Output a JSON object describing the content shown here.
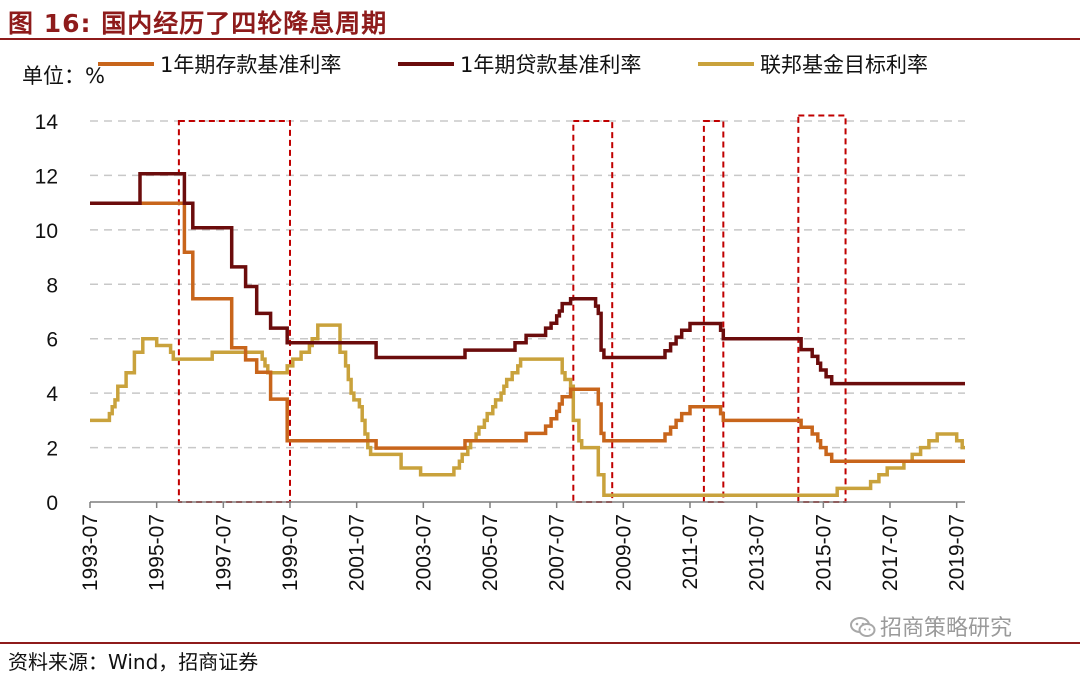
{
  "figure": {
    "title": "图 16:  国内经历了四轮降息周期",
    "source": "资料来源：Wind，招商证券",
    "watermark": "招商策略研究",
    "watermark_icon": "wechat-icon"
  },
  "chart_data": {
    "type": "line",
    "unit_label": "单位：%",
    "ylim": [
      0,
      14
    ],
    "yticks": [
      0,
      2,
      4,
      6,
      8,
      10,
      12,
      14
    ],
    "xlim": [
      "1993-07",
      "2019-10"
    ],
    "xticks": [
      "1993-07",
      "1995-07",
      "1997-07",
      "1999-07",
      "2001-07",
      "2003-07",
      "2005-07",
      "2007-07",
      "2009-07",
      "2011-07",
      "2013-07",
      "2015-07",
      "2017-07",
      "2019-07"
    ],
    "grid": "horizontal-dashed",
    "legend": "top",
    "colors": {
      "deposit": "#c8651b",
      "loan": "#6b0c0c",
      "fed": "#c9a23c",
      "box": "#c00000",
      "grid": "#c8c8c8"
    },
    "series": [
      {
        "key": "deposit",
        "name": "1年期存款基准利率",
        "points": [
          [
            "1993-07",
            10.98
          ],
          [
            "1996-05",
            10.98
          ],
          [
            "1996-05",
            9.18
          ],
          [
            "1996-08",
            9.18
          ],
          [
            "1996-08",
            7.47
          ],
          [
            "1997-10",
            7.47
          ],
          [
            "1997-10",
            5.67
          ],
          [
            "1998-03",
            5.67
          ],
          [
            "1998-03",
            5.22
          ],
          [
            "1998-07",
            5.22
          ],
          [
            "1998-07",
            4.77
          ],
          [
            "1998-12",
            4.77
          ],
          [
            "1998-12",
            3.78
          ],
          [
            "1999-06",
            3.78
          ],
          [
            "1999-06",
            2.25
          ],
          [
            "2002-02",
            2.25
          ],
          [
            "2002-02",
            1.98
          ],
          [
            "2004-10",
            1.98
          ],
          [
            "2004-10",
            2.25
          ],
          [
            "2006-08",
            2.25
          ],
          [
            "2006-08",
            2.52
          ],
          [
            "2007-03",
            2.52
          ],
          [
            "2007-03",
            2.79
          ],
          [
            "2007-05",
            2.79
          ],
          [
            "2007-05",
            3.06
          ],
          [
            "2007-07",
            3.06
          ],
          [
            "2007-07",
            3.33
          ],
          [
            "2007-08",
            3.33
          ],
          [
            "2007-08",
            3.6
          ],
          [
            "2007-09",
            3.6
          ],
          [
            "2007-09",
            3.87
          ],
          [
            "2007-12",
            3.87
          ],
          [
            "2007-12",
            4.14
          ],
          [
            "2008-10",
            4.14
          ],
          [
            "2008-10",
            3.87
          ],
          [
            "2008-10",
            3.6
          ],
          [
            "2008-11",
            3.6
          ],
          [
            "2008-11",
            2.52
          ],
          [
            "2008-12",
            2.52
          ],
          [
            "2008-12",
            2.25
          ],
          [
            "2010-10",
            2.25
          ],
          [
            "2010-10",
            2.5
          ],
          [
            "2010-12",
            2.5
          ],
          [
            "2010-12",
            2.75
          ],
          [
            "2011-02",
            2.75
          ],
          [
            "2011-02",
            3.0
          ],
          [
            "2011-04",
            3.0
          ],
          [
            "2011-04",
            3.25
          ],
          [
            "2011-07",
            3.25
          ],
          [
            "2011-07",
            3.5
          ],
          [
            "2012-06",
            3.5
          ],
          [
            "2012-06",
            3.25
          ],
          [
            "2012-07",
            3.25
          ],
          [
            "2012-07",
            3.0
          ],
          [
            "2014-11",
            3.0
          ],
          [
            "2014-11",
            2.75
          ],
          [
            "2015-03",
            2.75
          ],
          [
            "2015-03",
            2.5
          ],
          [
            "2015-05",
            2.5
          ],
          [
            "2015-05",
            2.25
          ],
          [
            "2015-06",
            2.25
          ],
          [
            "2015-06",
            2.0
          ],
          [
            "2015-08",
            2.0
          ],
          [
            "2015-08",
            1.75
          ],
          [
            "2015-10",
            1.75
          ],
          [
            "2015-10",
            1.5
          ],
          [
            "2019-10",
            1.5
          ]
        ]
      },
      {
        "key": "loan",
        "name": "1年期贷款基准利率",
        "points": [
          [
            "1993-07",
            10.98
          ],
          [
            "1995-01",
            10.98
          ],
          [
            "1995-01",
            12.06
          ],
          [
            "1996-05",
            12.06
          ],
          [
            "1996-05",
            10.98
          ],
          [
            "1996-08",
            10.98
          ],
          [
            "1996-08",
            10.08
          ],
          [
            "1997-10",
            10.08
          ],
          [
            "1997-10",
            8.64
          ],
          [
            "1998-03",
            8.64
          ],
          [
            "1998-03",
            7.92
          ],
          [
            "1998-07",
            7.92
          ],
          [
            "1998-07",
            6.93
          ],
          [
            "1998-12",
            6.93
          ],
          [
            "1998-12",
            6.39
          ],
          [
            "1999-06",
            6.39
          ],
          [
            "1999-06",
            5.85
          ],
          [
            "2002-02",
            5.85
          ],
          [
            "2002-02",
            5.31
          ],
          [
            "2004-10",
            5.31
          ],
          [
            "2004-10",
            5.58
          ],
          [
            "2006-04",
            5.58
          ],
          [
            "2006-04",
            5.85
          ],
          [
            "2006-08",
            5.85
          ],
          [
            "2006-08",
            6.12
          ],
          [
            "2007-03",
            6.12
          ],
          [
            "2007-03",
            6.39
          ],
          [
            "2007-05",
            6.39
          ],
          [
            "2007-05",
            6.57
          ],
          [
            "2007-07",
            6.57
          ],
          [
            "2007-07",
            6.84
          ],
          [
            "2007-08",
            6.84
          ],
          [
            "2007-08",
            7.02
          ],
          [
            "2007-09",
            7.02
          ],
          [
            "2007-09",
            7.29
          ],
          [
            "2007-12",
            7.29
          ],
          [
            "2007-12",
            7.47
          ],
          [
            "2008-09",
            7.47
          ],
          [
            "2008-09",
            7.2
          ],
          [
            "2008-10",
            7.2
          ],
          [
            "2008-10",
            6.93
          ],
          [
            "2008-11",
            6.93
          ],
          [
            "2008-11",
            6.66
          ],
          [
            "2008-11",
            5.58
          ],
          [
            "2008-12",
            5.58
          ],
          [
            "2008-12",
            5.31
          ],
          [
            "2010-10",
            5.31
          ],
          [
            "2010-10",
            5.56
          ],
          [
            "2010-12",
            5.56
          ],
          [
            "2010-12",
            5.81
          ],
          [
            "2011-02",
            5.81
          ],
          [
            "2011-02",
            6.06
          ],
          [
            "2011-04",
            6.06
          ],
          [
            "2011-04",
            6.31
          ],
          [
            "2011-07",
            6.31
          ],
          [
            "2011-07",
            6.56
          ],
          [
            "2012-06",
            6.56
          ],
          [
            "2012-06",
            6.31
          ],
          [
            "2012-07",
            6.31
          ],
          [
            "2012-07",
            6.0
          ],
          [
            "2014-11",
            6.0
          ],
          [
            "2014-11",
            5.6
          ],
          [
            "2015-03",
            5.6
          ],
          [
            "2015-03",
            5.35
          ],
          [
            "2015-05",
            5.35
          ],
          [
            "2015-05",
            5.1
          ],
          [
            "2015-06",
            5.1
          ],
          [
            "2015-06",
            4.85
          ],
          [
            "2015-08",
            4.85
          ],
          [
            "2015-08",
            4.6
          ],
          [
            "2015-10",
            4.6
          ],
          [
            "2015-10",
            4.35
          ],
          [
            "2019-10",
            4.35
          ]
        ]
      },
      {
        "key": "fed",
        "name": "联邦基金目标利率",
        "points": [
          [
            "1993-07",
            3.0
          ],
          [
            "1994-02",
            3.0
          ],
          [
            "1994-02",
            3.25
          ],
          [
            "1994-03",
            3.25
          ],
          [
            "1994-03",
            3.5
          ],
          [
            "1994-04",
            3.5
          ],
          [
            "1994-04",
            3.75
          ],
          [
            "1994-05",
            3.75
          ],
          [
            "1994-05",
            4.25
          ],
          [
            "1994-08",
            4.25
          ],
          [
            "1994-08",
            4.75
          ],
          [
            "1994-11",
            4.75
          ],
          [
            "1994-11",
            5.5
          ],
          [
            "1995-02",
            5.5
          ],
          [
            "1995-02",
            6.0
          ],
          [
            "1995-07",
            6.0
          ],
          [
            "1995-07",
            5.75
          ],
          [
            "1995-12",
            5.75
          ],
          [
            "1995-12",
            5.5
          ],
          [
            "1996-01",
            5.5
          ],
          [
            "1996-01",
            5.25
          ],
          [
            "1997-03",
            5.25
          ],
          [
            "1997-03",
            5.5
          ],
          [
            "1998-09",
            5.5
          ],
          [
            "1998-09",
            5.25
          ],
          [
            "1998-10",
            5.25
          ],
          [
            "1998-10",
            5.0
          ],
          [
            "1998-11",
            5.0
          ],
          [
            "1998-11",
            4.75
          ],
          [
            "1999-06",
            4.75
          ],
          [
            "1999-06",
            5.0
          ],
          [
            "1999-08",
            5.0
          ],
          [
            "1999-08",
            5.25
          ],
          [
            "1999-11",
            5.25
          ],
          [
            "1999-11",
            5.5
          ],
          [
            "2000-02",
            5.5
          ],
          [
            "2000-02",
            5.75
          ],
          [
            "2000-03",
            5.75
          ],
          [
            "2000-03",
            6.0
          ],
          [
            "2000-05",
            6.0
          ],
          [
            "2000-05",
            6.5
          ],
          [
            "2001-01",
            6.5
          ],
          [
            "2001-01",
            6.0
          ],
          [
            "2001-01",
            5.5
          ],
          [
            "2001-03",
            5.5
          ],
          [
            "2001-03",
            5.0
          ],
          [
            "2001-04",
            5.0
          ],
          [
            "2001-04",
            4.5
          ],
          [
            "2001-05",
            4.5
          ],
          [
            "2001-05",
            4.0
          ],
          [
            "2001-06",
            4.0
          ],
          [
            "2001-06",
            3.75
          ],
          [
            "2001-08",
            3.75
          ],
          [
            "2001-08",
            3.5
          ],
          [
            "2001-09",
            3.5
          ],
          [
            "2001-09",
            3.0
          ],
          [
            "2001-10",
            3.0
          ],
          [
            "2001-10",
            2.5
          ],
          [
            "2001-11",
            2.5
          ],
          [
            "2001-11",
            2.0
          ],
          [
            "2001-12",
            2.0
          ],
          [
            "2001-12",
            1.75
          ],
          [
            "2002-11",
            1.75
          ],
          [
            "2002-11",
            1.25
          ],
          [
            "2003-06",
            1.25
          ],
          [
            "2003-06",
            1.0
          ],
          [
            "2004-06",
            1.0
          ],
          [
            "2004-06",
            1.25
          ],
          [
            "2004-08",
            1.25
          ],
          [
            "2004-08",
            1.5
          ],
          [
            "2004-09",
            1.5
          ],
          [
            "2004-09",
            1.75
          ],
          [
            "2004-11",
            1.75
          ],
          [
            "2004-11",
            2.0
          ],
          [
            "2004-12",
            2.0
          ],
          [
            "2004-12",
            2.25
          ],
          [
            "2005-02",
            2.25
          ],
          [
            "2005-02",
            2.5
          ],
          [
            "2005-03",
            2.5
          ],
          [
            "2005-03",
            2.75
          ],
          [
            "2005-05",
            2.75
          ],
          [
            "2005-05",
            3.0
          ],
          [
            "2005-06",
            3.0
          ],
          [
            "2005-06",
            3.25
          ],
          [
            "2005-08",
            3.25
          ],
          [
            "2005-08",
            3.5
          ],
          [
            "2005-09",
            3.5
          ],
          [
            "2005-09",
            3.75
          ],
          [
            "2005-11",
            3.75
          ],
          [
            "2005-11",
            4.0
          ],
          [
            "2005-12",
            4.0
          ],
          [
            "2005-12",
            4.25
          ],
          [
            "2006-01",
            4.25
          ],
          [
            "2006-01",
            4.5
          ],
          [
            "2006-03",
            4.5
          ],
          [
            "2006-03",
            4.75
          ],
          [
            "2006-05",
            4.75
          ],
          [
            "2006-05",
            5.0
          ],
          [
            "2006-06",
            5.0
          ],
          [
            "2006-06",
            5.25
          ],
          [
            "2007-09",
            5.25
          ],
          [
            "2007-09",
            4.75
          ],
          [
            "2007-10",
            4.75
          ],
          [
            "2007-10",
            4.5
          ],
          [
            "2007-12",
            4.5
          ],
          [
            "2007-12",
            4.25
          ],
          [
            "2008-01",
            4.25
          ],
          [
            "2008-01",
            3.5
          ],
          [
            "2008-01",
            3.0
          ],
          [
            "2008-03",
            3.0
          ],
          [
            "2008-03",
            2.25
          ],
          [
            "2008-04",
            2.25
          ],
          [
            "2008-04",
            2.0
          ],
          [
            "2008-10",
            2.0
          ],
          [
            "2008-10",
            1.5
          ],
          [
            "2008-10",
            1.0
          ],
          [
            "2008-12",
            1.0
          ],
          [
            "2008-12",
            0.25
          ],
          [
            "2015-12",
            0.25
          ],
          [
            "2015-12",
            0.5
          ],
          [
            "2016-12",
            0.5
          ],
          [
            "2016-12",
            0.75
          ],
          [
            "2017-03",
            0.75
          ],
          [
            "2017-03",
            1.0
          ],
          [
            "2017-06",
            1.0
          ],
          [
            "2017-06",
            1.25
          ],
          [
            "2017-12",
            1.25
          ],
          [
            "2017-12",
            1.5
          ],
          [
            "2018-03",
            1.5
          ],
          [
            "2018-03",
            1.75
          ],
          [
            "2018-06",
            1.75
          ],
          [
            "2018-06",
            2.0
          ],
          [
            "2018-09",
            2.0
          ],
          [
            "2018-09",
            2.25
          ],
          [
            "2018-12",
            2.25
          ],
          [
            "2018-12",
            2.5
          ],
          [
            "2019-07",
            2.5
          ],
          [
            "2019-07",
            2.25
          ],
          [
            "2019-09",
            2.25
          ],
          [
            "2019-09",
            2.0
          ],
          [
            "2019-10",
            2.0
          ]
        ]
      }
    ],
    "highlight_boxes": [
      {
        "x0": "1996-03",
        "x1": "1999-07",
        "y0": 0,
        "y1": 14
      },
      {
        "x0": "2008-01",
        "x1": "2009-03",
        "y0": 0,
        "y1": 14
      },
      {
        "x0": "2011-12",
        "x1": "2012-07",
        "y0": 0,
        "y1": 14
      },
      {
        "x0": "2014-10",
        "x1": "2016-03",
        "y0": 0,
        "y1": 14.2
      }
    ]
  }
}
